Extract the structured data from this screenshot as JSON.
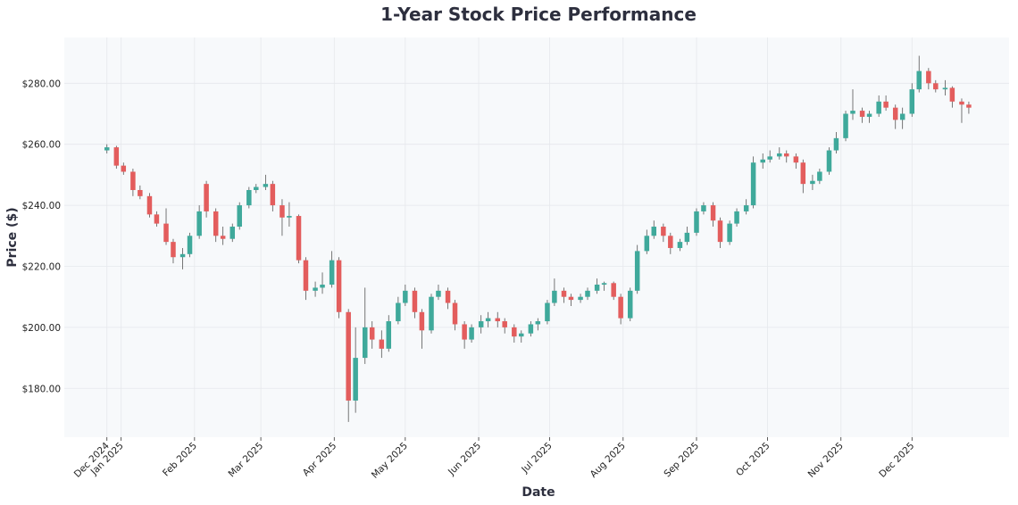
{
  "chart_data": {
    "type": "candlestick",
    "title": "1-Year Stock Price Performance",
    "xlabel": "Date",
    "ylabel": "Price ($)",
    "ylim": [
      164,
      295
    ],
    "xlim": [
      "2024-12-08",
      "2026-01-11"
    ],
    "grid": true,
    "colors": {
      "up": "#3fa99b",
      "down": "#e35d5d",
      "wick": "#555555",
      "plot_bg": "#f7f9fb",
      "grid": "#e6e8ec"
    },
    "yticks": [
      {
        "value": 180,
        "label": "$180.00"
      },
      {
        "value": 200,
        "label": "$200.00"
      },
      {
        "value": 220,
        "label": "$220.00"
      },
      {
        "value": 240,
        "label": "$240.00"
      },
      {
        "value": 260,
        "label": "$260.00"
      },
      {
        "value": 280,
        "label": "$280.00"
      }
    ],
    "xticks": [
      {
        "date": "2024-12-26",
        "label": "Dec 2024"
      },
      {
        "date": "2025-01-01",
        "label": "Jan 2025"
      },
      {
        "date": "2025-02-01",
        "label": "Feb 2025"
      },
      {
        "date": "2025-03-01",
        "label": "Mar 2025"
      },
      {
        "date": "2025-04-01",
        "label": "Apr 2025"
      },
      {
        "date": "2025-05-01",
        "label": "May 2025"
      },
      {
        "date": "2025-06-01",
        "label": "Jun 2025"
      },
      {
        "date": "2025-07-01",
        "label": "Jul 2025"
      },
      {
        "date": "2025-08-01",
        "label": "Aug 2025"
      },
      {
        "date": "2025-09-01",
        "label": "Sep 2025"
      },
      {
        "date": "2025-10-01",
        "label": "Oct 2025"
      },
      {
        "date": "2025-11-01",
        "label": "Nov 2025"
      },
      {
        "date": "2025-12-01",
        "label": "Dec 2025"
      }
    ],
    "candle_fields": [
      "date",
      "open",
      "high",
      "low",
      "close"
    ],
    "candles": [
      [
        "2024-12-26",
        258,
        260,
        257,
        259
      ],
      [
        "2024-12-30",
        259,
        259.5,
        252,
        253
      ],
      [
        "2025-01-02",
        253,
        254,
        250,
        251
      ],
      [
        "2025-01-06",
        251,
        252,
        243,
        245
      ],
      [
        "2025-01-09",
        245,
        246.5,
        242,
        243
      ],
      [
        "2025-01-13",
        243,
        244,
        236,
        237
      ],
      [
        "2025-01-16",
        237,
        238,
        233,
        234
      ],
      [
        "2025-01-20",
        234,
        239,
        227,
        228
      ],
      [
        "2025-01-23",
        228,
        229,
        221,
        223
      ],
      [
        "2025-01-27",
        223,
        226,
        219,
        224
      ],
      [
        "2025-01-30",
        224,
        231,
        223,
        230
      ],
      [
        "2025-02-03",
        230,
        240,
        229,
        238
      ],
      [
        "2025-02-06",
        247,
        248,
        236,
        238
      ],
      [
        "2025-02-10",
        238,
        239,
        228,
        230
      ],
      [
        "2025-02-13",
        230,
        233,
        227,
        229
      ],
      [
        "2025-02-17",
        229,
        234,
        228,
        233
      ],
      [
        "2025-02-20",
        233,
        241,
        232,
        240
      ],
      [
        "2025-02-24",
        240,
        246,
        239,
        245
      ],
      [
        "2025-02-27",
        245,
        247,
        244,
        246
      ],
      [
        "2025-03-03",
        246,
        250,
        245,
        247
      ],
      [
        "2025-03-06",
        247,
        248,
        238,
        240
      ],
      [
        "2025-03-10",
        240,
        242,
        230,
        236
      ],
      [
        "2025-03-13",
        236,
        241,
        233,
        236.5
      ],
      [
        "2025-03-17",
        236.5,
        237,
        221,
        222
      ],
      [
        "2025-03-20",
        222,
        223,
        209,
        212
      ],
      [
        "2025-03-24",
        212,
        215,
        210,
        213
      ],
      [
        "2025-03-27",
        213,
        218,
        211,
        214
      ],
      [
        "2025-03-31",
        214,
        225,
        213,
        222
      ],
      [
        "2025-04-03",
        222,
        223,
        203,
        205
      ],
      [
        "2025-04-07",
        205,
        206,
        169,
        176
      ],
      [
        "2025-04-10",
        176,
        200,
        172,
        190
      ],
      [
        "2025-04-14",
        190,
        213,
        188,
        200
      ],
      [
        "2025-04-17",
        200,
        202,
        193,
        196
      ],
      [
        "2025-04-21",
        196,
        199,
        190,
        193
      ],
      [
        "2025-04-24",
        193,
        204,
        192,
        202
      ],
      [
        "2025-04-28",
        202,
        210,
        201,
        208
      ],
      [
        "2025-05-01",
        208,
        214,
        207,
        212
      ],
      [
        "2025-05-05",
        212,
        213,
        203,
        205
      ],
      [
        "2025-05-08",
        205,
        206,
        193,
        199
      ],
      [
        "2025-05-12",
        199,
        211,
        198,
        210
      ],
      [
        "2025-05-15",
        210,
        214,
        209,
        212
      ],
      [
        "2025-05-19",
        212,
        213,
        206,
        208
      ],
      [
        "2025-05-22",
        208,
        209,
        199,
        201
      ],
      [
        "2025-05-26",
        201,
        202,
        193,
        196
      ],
      [
        "2025-05-29",
        196,
        201,
        195,
        200
      ],
      [
        "2025-06-02",
        200,
        204,
        198,
        202
      ],
      [
        "2025-06-05",
        202,
        205,
        200,
        203
      ],
      [
        "2025-06-09",
        203,
        205,
        200,
        202
      ],
      [
        "2025-06-12",
        202,
        203,
        198,
        200
      ],
      [
        "2025-06-16",
        200,
        201,
        195,
        197
      ],
      [
        "2025-06-19",
        197,
        199,
        195,
        198
      ],
      [
        "2025-06-23",
        198,
        202,
        197,
        201
      ],
      [
        "2025-06-26",
        201,
        203,
        199,
        202
      ],
      [
        "2025-06-30",
        202,
        209,
        201,
        208
      ],
      [
        "2025-07-03",
        208,
        216,
        207,
        212
      ],
      [
        "2025-07-07",
        212,
        213,
        208,
        210
      ],
      [
        "2025-07-10",
        210,
        211,
        207,
        209
      ],
      [
        "2025-07-14",
        209,
        211,
        208,
        210
      ],
      [
        "2025-07-17",
        210,
        213,
        209,
        212
      ],
      [
        "2025-07-21",
        212,
        216,
        211,
        214
      ],
      [
        "2025-07-24",
        214,
        215,
        212,
        214.5
      ],
      [
        "2025-07-28",
        214.5,
        215,
        209,
        210
      ],
      [
        "2025-07-31",
        210,
        211,
        201,
        203
      ],
      [
        "2025-08-04",
        203,
        213,
        202,
        212
      ],
      [
        "2025-08-07",
        212,
        227,
        211,
        225
      ],
      [
        "2025-08-11",
        225,
        232,
        224,
        230
      ],
      [
        "2025-08-14",
        230,
        235,
        229,
        233
      ],
      [
        "2025-08-18",
        233,
        234,
        228,
        230
      ],
      [
        "2025-08-21",
        230,
        231,
        224,
        226
      ],
      [
        "2025-08-25",
        226,
        229,
        225,
        228
      ],
      [
        "2025-08-28",
        228,
        233,
        227,
        231
      ],
      [
        "2025-09-01",
        231,
        239,
        230,
        238
      ],
      [
        "2025-09-04",
        238,
        241,
        237,
        240
      ],
      [
        "2025-09-08",
        240,
        241,
        233,
        235
      ],
      [
        "2025-09-11",
        235,
        236,
        226,
        228
      ],
      [
        "2025-09-15",
        228,
        235,
        227,
        234
      ],
      [
        "2025-09-18",
        234,
        239,
        233,
        238
      ],
      [
        "2025-09-22",
        238,
        242,
        237,
        240
      ],
      [
        "2025-09-25",
        240,
        256,
        239,
        254
      ],
      [
        "2025-09-29",
        254,
        257,
        252,
        255
      ],
      [
        "2025-10-02",
        255,
        258,
        254,
        256
      ],
      [
        "2025-10-06",
        256,
        259,
        255,
        257
      ],
      [
        "2025-10-09",
        257,
        258,
        254,
        256
      ],
      [
        "2025-10-13",
        256,
        257,
        252,
        254
      ],
      [
        "2025-10-16",
        254,
        255,
        244,
        247
      ],
      [
        "2025-10-20",
        247,
        250,
        245,
        248
      ],
      [
        "2025-10-23",
        248,
        252,
        247,
        251
      ],
      [
        "2025-10-27",
        251,
        259,
        250,
        258
      ],
      [
        "2025-10-30",
        258,
        264,
        257,
        262
      ],
      [
        "2025-11-03",
        262,
        271,
        261,
        270
      ],
      [
        "2025-11-06",
        270,
        278,
        268,
        271
      ],
      [
        "2025-11-10",
        271,
        272,
        267,
        269
      ],
      [
        "2025-11-13",
        269,
        271,
        267,
        270
      ],
      [
        "2025-11-17",
        270,
        276,
        269,
        274
      ],
      [
        "2025-11-20",
        274,
        276,
        271,
        272
      ],
      [
        "2025-11-24",
        272,
        273,
        265,
        268
      ],
      [
        "2025-11-27",
        268,
        272,
        265,
        270
      ],
      [
        "2025-12-01",
        270,
        280,
        269,
        278
      ],
      [
        "2025-12-04",
        278,
        289,
        277,
        284
      ],
      [
        "2025-12-08",
        284,
        285,
        278,
        280
      ],
      [
        "2025-12-11",
        280,
        281,
        277,
        278
      ],
      [
        "2025-12-15",
        278,
        281,
        276,
        278.5
      ],
      [
        "2025-12-18",
        278.5,
        279,
        272,
        274
      ],
      [
        "2025-12-22",
        274,
        275,
        267,
        273
      ],
      [
        "2025-12-25",
        273,
        274,
        270,
        272
      ]
    ]
  }
}
